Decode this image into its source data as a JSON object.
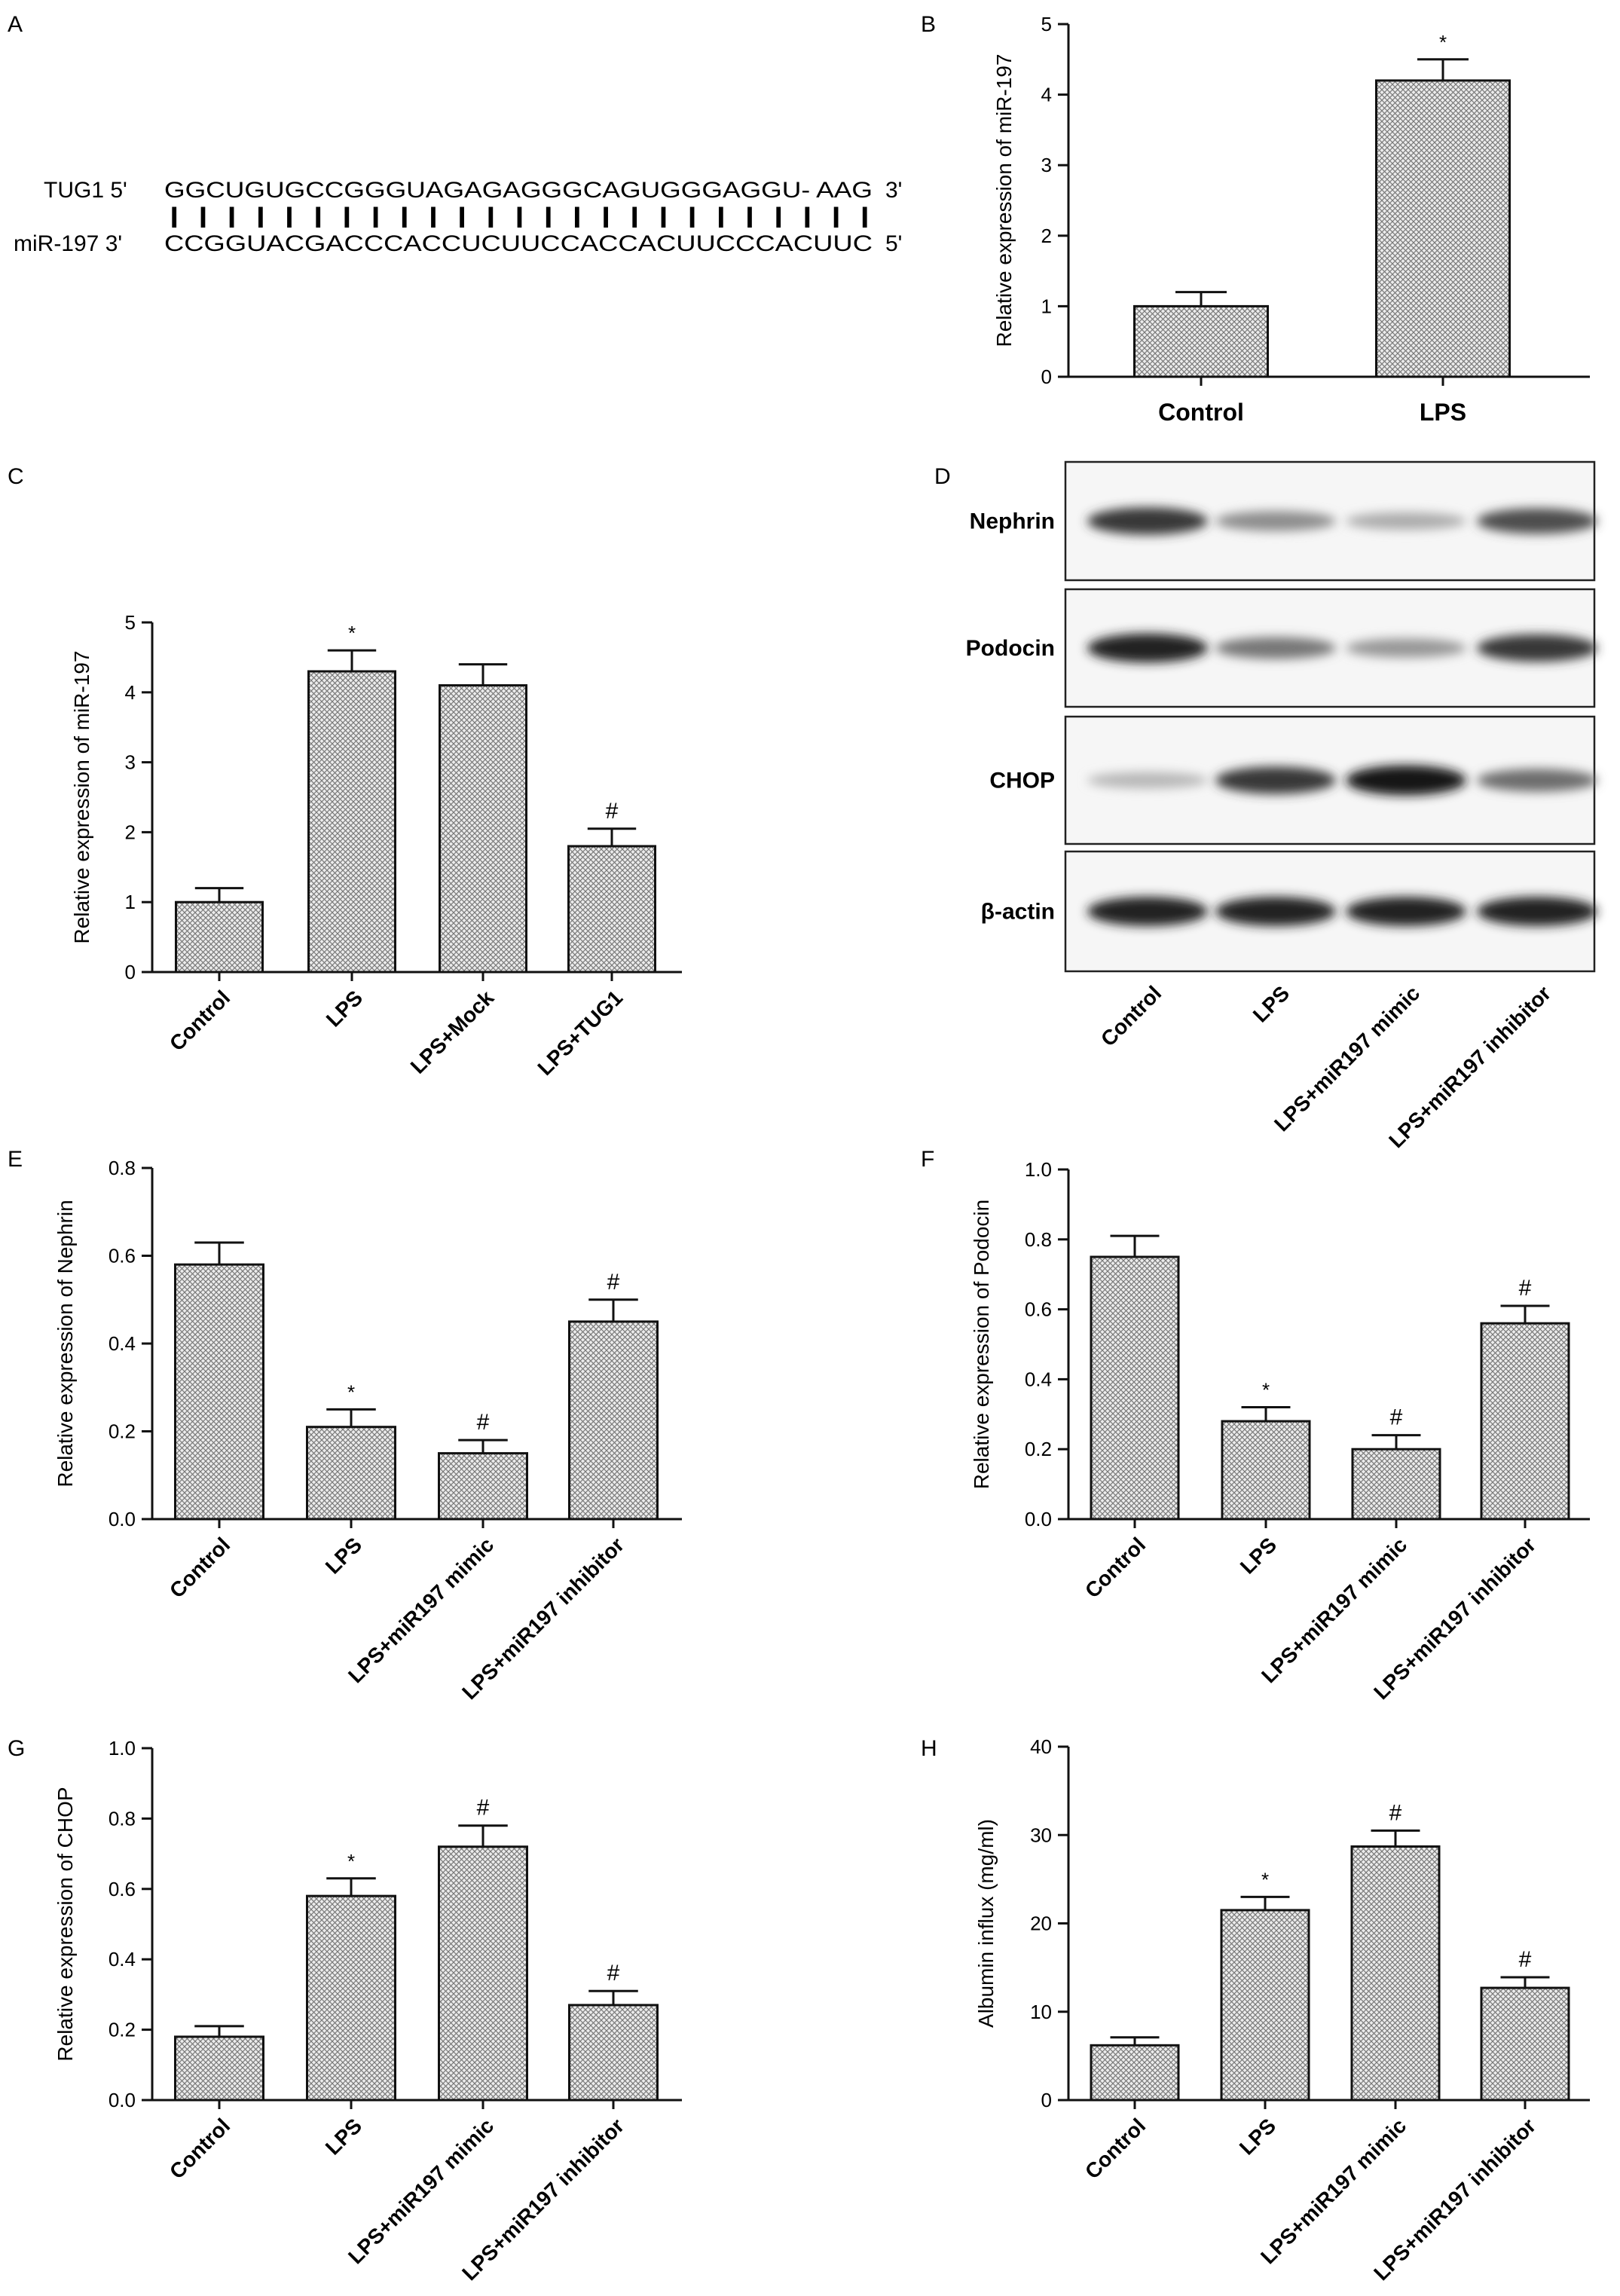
{
  "panels": {
    "A": {
      "label": "A",
      "lines": [
        {
          "name": "TUG1 5'",
          "seq": "GGCUGUGCCGGGUAGAGAGGGCAGUGGGAGGU- AAG",
          "end": "3'"
        },
        {
          "name": "miR-197 3'",
          "seq": "CCGGUACGACCCACCUCUUCCACCACUUCCCACUUC",
          "end": "5'"
        }
      ],
      "pair_marks": "| | |    | | |   | | |   | | | |   | |   | | |        | | |   | | | |"
    },
    "D": {
      "label": "D",
      "blots": [
        "Nephrin",
        "Podocin",
        "CHOP",
        "β-actin"
      ],
      "lanes": [
        "Control",
        "LPS",
        "LPS+miR197 mimic",
        "LPS+miR197 inhibitor"
      ],
      "band_intensity": [
        [
          0.85,
          0.45,
          0.3,
          0.75
        ],
        [
          0.95,
          0.55,
          0.4,
          0.85
        ],
        [
          0.25,
          0.85,
          1.0,
          0.6
        ],
        [
          0.95,
          0.95,
          0.95,
          0.95
        ]
      ]
    }
  },
  "chart_data": [
    {
      "panel": "B",
      "type": "bar",
      "categories": [
        "Control",
        "LPS"
      ],
      "values": [
        1.0,
        4.2
      ],
      "errors": [
        0.2,
        0.3
      ],
      "markers": [
        "",
        "*"
      ],
      "ylabel": "Relative expression of miR-197",
      "ylim": [
        0,
        5
      ],
      "yticks": [
        "0",
        "1",
        "2",
        "3",
        "4",
        "5"
      ]
    },
    {
      "panel": "C",
      "type": "bar",
      "categories": [
        "Control",
        "LPS",
        "LPS+Mock",
        "LPS+TUG1"
      ],
      "values": [
        1.0,
        4.3,
        4.1,
        1.8
      ],
      "errors": [
        0.2,
        0.3,
        0.3,
        0.25
      ],
      "markers": [
        "",
        "*",
        "",
        "#"
      ],
      "ylabel": "Relative expression of miR-197",
      "ylim": [
        0,
        5
      ],
      "yticks": [
        "0",
        "1",
        "2",
        "3",
        "4",
        "5"
      ]
    },
    {
      "panel": "E",
      "type": "bar",
      "categories": [
        "Control",
        "LPS",
        "LPS+miR197 mimic",
        "LPS+miR197 inhibitor"
      ],
      "values": [
        0.58,
        0.21,
        0.15,
        0.45
      ],
      "errors": [
        0.05,
        0.04,
        0.03,
        0.05
      ],
      "markers": [
        "",
        "*",
        "#",
        "#"
      ],
      "ylabel": "Relative expression of Nephrin",
      "ylim": [
        0,
        0.8
      ],
      "yticks": [
        "0.0",
        "0.2",
        "0.4",
        "0.6",
        "0.8"
      ]
    },
    {
      "panel": "F",
      "type": "bar",
      "categories": [
        "Control",
        "LPS",
        "LPS+miR197 mimic",
        "LPS+miR197 inhibitor"
      ],
      "values": [
        0.75,
        0.28,
        0.2,
        0.56
      ],
      "errors": [
        0.06,
        0.04,
        0.04,
        0.05
      ],
      "markers": [
        "",
        "*",
        "#",
        "#"
      ],
      "ylabel": "Relative expression of Podocin",
      "ylim": [
        0,
        1.0
      ],
      "yticks": [
        "0.0",
        "0.2",
        "0.4",
        "0.6",
        "0.8",
        "1.0"
      ]
    },
    {
      "panel": "G",
      "type": "bar",
      "categories": [
        "Control",
        "LPS",
        "LPS+miR197 mimic",
        "LPS+miR197 inhibitor"
      ],
      "values": [
        0.18,
        0.58,
        0.72,
        0.27
      ],
      "errors": [
        0.03,
        0.05,
        0.06,
        0.04
      ],
      "markers": [
        "",
        "*",
        "#",
        "#"
      ],
      "ylabel": "Relative expression of CHOP",
      "ylim": [
        0,
        1.0
      ],
      "yticks": [
        "0.0",
        "0.2",
        "0.4",
        "0.6",
        "0.8",
        "1.0"
      ]
    },
    {
      "panel": "H",
      "type": "bar",
      "categories": [
        "Control",
        "LPS",
        "LPS+miR197 mimic",
        "LPS+miR197 inhibitor"
      ],
      "values": [
        6.2,
        21.5,
        28.7,
        12.7
      ],
      "errors": [
        0.9,
        1.5,
        1.8,
        1.2
      ],
      "markers": [
        "",
        "*",
        "#",
        "#"
      ],
      "ylabel": "Albumin influx (mg/ml)",
      "ylim": [
        0,
        40
      ],
      "yticks": [
        "0",
        "10",
        "20",
        "30",
        "40"
      ]
    }
  ]
}
